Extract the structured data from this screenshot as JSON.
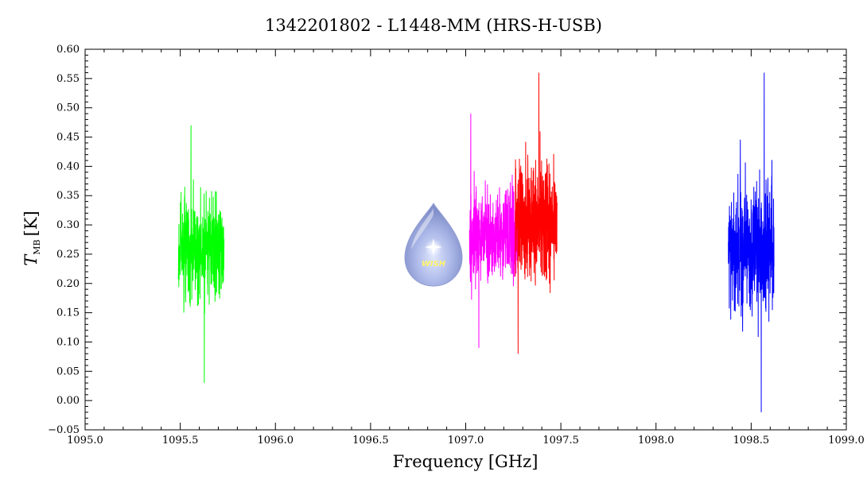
{
  "chart_data": {
    "type": "line",
    "title": "1342201802 - L1448-MM (HRS-H-USB)",
    "xlabel": "Frequency [GHz]",
    "ylabel": {
      "symbol": "T",
      "subscript": "MB",
      "unit": "[K]"
    },
    "xlim": [
      1095.0,
      1099.0
    ],
    "ylim": [
      -0.05,
      0.6
    ],
    "x_ticks": [
      "1095.0",
      "1095.5",
      "1096.0",
      "1096.5",
      "1097.0",
      "1097.5",
      "1098.0",
      "1098.5",
      "1099.0"
    ],
    "y_ticks": [
      "-0.05",
      "0.00",
      "0.05",
      "0.10",
      "0.15",
      "0.20",
      "0.25",
      "0.30",
      "0.35",
      "0.40",
      "0.45",
      "0.50",
      "0.55",
      "0.60"
    ],
    "grid": false,
    "series": [
      {
        "color": "#00ff00",
        "x_range": [
          1095.49,
          1095.73
        ],
        "mean": 0.26,
        "min": 0.03,
        "max": 0.47
      },
      {
        "color": "#ff00ff",
        "x_range": [
          1097.02,
          1097.27
        ],
        "mean": 0.28,
        "min": 0.09,
        "max": 0.49
      },
      {
        "color": "#ff0000",
        "x_range": [
          1097.26,
          1097.48
        ],
        "mean": 0.31,
        "min": 0.08,
        "max": 0.56
      },
      {
        "color": "#0000ff",
        "x_range": [
          1098.38,
          1098.62
        ],
        "mean": 0.26,
        "min": -0.02,
        "max": 0.56
      }
    ]
  },
  "logo": {
    "text": "WISH",
    "icon": "wish-droplet-icon"
  }
}
